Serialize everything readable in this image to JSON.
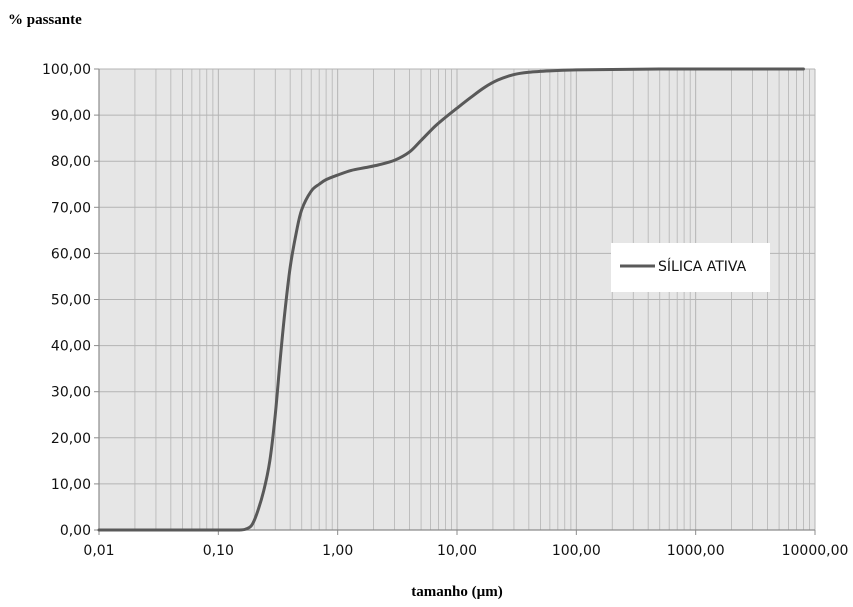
{
  "chart_data": {
    "type": "line",
    "title": "",
    "ylabel": "% passante",
    "xlabel": "tamanho (µm)",
    "x_scale": "log",
    "xlim": [
      0.01,
      10000
    ],
    "ylim": [
      0,
      100
    ],
    "grid": true,
    "legend_position": "right",
    "x_tick_labels": [
      "0,01",
      "0,10",
      "1,00",
      "10,00",
      "100,00",
      "1000,00",
      "10000,00"
    ],
    "x_tick_values": [
      0.01,
      0.1,
      1,
      10,
      100,
      1000,
      10000
    ],
    "y_tick_labels": [
      "0,00",
      "10,00",
      "20,00",
      "30,00",
      "40,00",
      "50,00",
      "60,00",
      "70,00",
      "80,00",
      "90,00",
      "100,00"
    ],
    "y_tick_values": [
      0,
      10,
      20,
      30,
      40,
      50,
      60,
      70,
      80,
      90,
      100
    ],
    "colors": {
      "plot_bg": "#e6e6e6",
      "grid": "#b4b4b4",
      "line": "#595959"
    },
    "series": [
      {
        "name": "SÍLICA ATIVA",
        "x": [
          0.01,
          0.05,
          0.1,
          0.15,
          0.17,
          0.19,
          0.21,
          0.24,
          0.27,
          0.3,
          0.33,
          0.36,
          0.4,
          0.45,
          0.5,
          0.6,
          0.7,
          0.8,
          1.0,
          1.3,
          1.7,
          2.2,
          3.0,
          4.0,
          5.0,
          6.5,
          8.0,
          10.0,
          13.0,
          17.0,
          22.0,
          30.0,
          40.0,
          60.0,
          100.0,
          200.0,
          500.0,
          1000.0,
          3000.0,
          8000.0
        ],
        "y": [
          0,
          0,
          0,
          0,
          0.2,
          1.0,
          3.5,
          8.5,
          15,
          25,
          37,
          47,
          57,
          64.5,
          69.5,
          73.5,
          75,
          76,
          77,
          78,
          78.6,
          79.2,
          80.2,
          82,
          84.5,
          87.5,
          89.5,
          91.5,
          93.8,
          96,
          97.6,
          98.8,
          99.3,
          99.6,
          99.8,
          99.9,
          100,
          100,
          100,
          100
        ]
      }
    ]
  }
}
